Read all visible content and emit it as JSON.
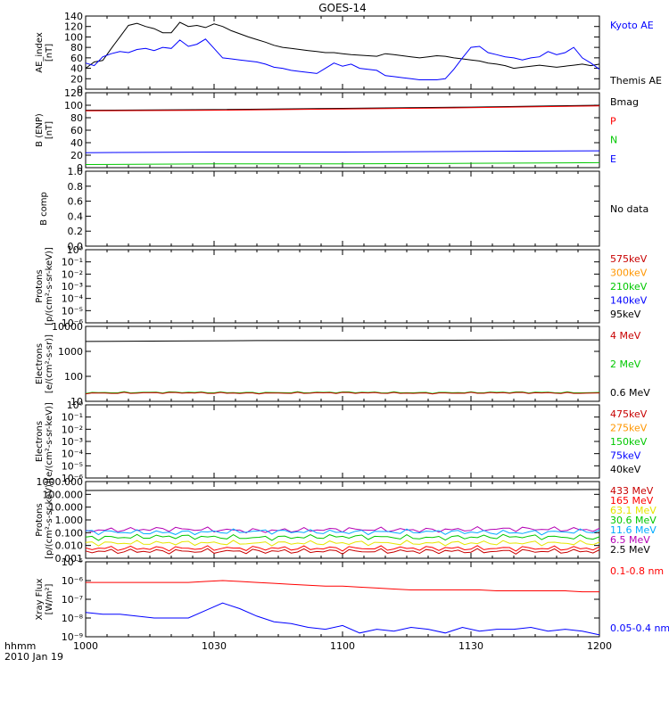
{
  "title": "GOES-14",
  "time_axis": {
    "corner_label": "hhmm",
    "date_label": "2010 Jan 19",
    "ticks": [
      "1000",
      "1030",
      "1100",
      "1130",
      "1200"
    ]
  },
  "colors": {
    "black": "#000000",
    "blue": "#0000ff",
    "red": "#ff0000",
    "green": "#00c800",
    "darkred": "#c80000",
    "orange": "#ff9600",
    "yellow": "#e6e600",
    "cyan": "#00aaff",
    "purple": "#b400b4"
  },
  "chart_data": [
    {
      "id": "ae",
      "type": "line",
      "ylabel": [
        "AE_index",
        "[nT]"
      ],
      "ylim": [
        0,
        140
      ],
      "yticks": [
        "0",
        "20",
        "40",
        "60",
        "80",
        "100",
        "120",
        "140"
      ],
      "legend": [
        {
          "label": "Kyoto AE",
          "color": "#0000ff"
        },
        {
          "label": "Themis AE",
          "color": "#000000"
        }
      ],
      "x_minutes": [
        0,
        2,
        4,
        6,
        8,
        10,
        12,
        14,
        16,
        18,
        20,
        22,
        24,
        26,
        28,
        30,
        32,
        34,
        36,
        38,
        40,
        42,
        44,
        46,
        48,
        50,
        52,
        54,
        56,
        58,
        60,
        62,
        64,
        66,
        68,
        70,
        72,
        74,
        76,
        78,
        80,
        82,
        84,
        86,
        88,
        90,
        92,
        94,
        96,
        98,
        100,
        102,
        104,
        106,
        108,
        110,
        112,
        114,
        116,
        118,
        120
      ],
      "series": [
        {
          "name": "Themis AE",
          "color": "#000000",
          "values": [
            40,
            52,
            55,
            78,
            100,
            122,
            126,
            120,
            116,
            108,
            108,
            128,
            120,
            122,
            118,
            125,
            120,
            112,
            106,
            100,
            95,
            90,
            84,
            80,
            78,
            76,
            74,
            72,
            70,
            70,
            68,
            66,
            65,
            64,
            63,
            68,
            66,
            64,
            62,
            60,
            62,
            64,
            63,
            60,
            58,
            56,
            54,
            50,
            48,
            45,
            40,
            42,
            44,
            46,
            44,
            42,
            44,
            46,
            48,
            45,
            48
          ]
        },
        {
          "name": "Kyoto AE",
          "color": "#0000ff",
          "values": [
            50,
            45,
            62,
            68,
            72,
            70,
            76,
            78,
            74,
            80,
            78,
            94,
            82,
            86,
            96,
            78,
            60,
            58,
            56,
            54,
            52,
            48,
            42,
            40,
            36,
            34,
            32,
            30,
            40,
            50,
            44,
            48,
            40,
            38,
            36,
            26,
            24,
            22,
            20,
            18,
            18,
            18,
            20,
            38,
            60,
            80,
            82,
            70,
            66,
            62,
            60,
            56,
            60,
            62,
            72,
            66,
            70,
            80,
            60,
            50,
            38
          ]
        }
      ]
    },
    {
      "id": "bfield",
      "type": "line",
      "ylabel": [
        "B (ENP)",
        "[nT]"
      ],
      "ylim": [
        0,
        120
      ],
      "yticks": [
        "0",
        "20",
        "40",
        "60",
        "80",
        "100",
        "120"
      ],
      "legend": [
        {
          "label": "Bmag",
          "color": "#000000"
        },
        {
          "label": "P",
          "color": "#ff0000"
        },
        {
          "label": "N",
          "color": "#00c800"
        },
        {
          "label": "E",
          "color": "#0000ff"
        }
      ],
      "x_minutes": [
        0,
        30,
        60,
        90,
        120
      ],
      "series": [
        {
          "name": "Bmag",
          "color": "#000000",
          "values": [
            92,
            93,
            95,
            97,
            100
          ]
        },
        {
          "name": "P",
          "color": "#ff0000",
          "values": [
            91,
            92,
            94,
            96,
            99
          ]
        },
        {
          "name": "E",
          "color": "#0000ff",
          "values": [
            24,
            25,
            25,
            26,
            27
          ]
        },
        {
          "name": "N",
          "color": "#00c800",
          "values": [
            5,
            6,
            6,
            7,
            8
          ]
        }
      ]
    },
    {
      "id": "bcomp",
      "type": "line",
      "ylabel": [
        "B comp"
      ],
      "ylim": [
        0,
        1
      ],
      "yticks": [
        "0.0",
        "0.2",
        "0.4",
        "0.6",
        "0.8",
        "1.0"
      ],
      "legend": [
        {
          "label": "No data",
          "color": "#000000"
        }
      ],
      "series": []
    },
    {
      "id": "protons_low",
      "type": "line",
      "scale": "log",
      "ylabel": [
        "Protons",
        "[p/(cm²-s-sr-keV)]"
      ],
      "yticks": [
        "10⁻⁶",
        "10⁻⁵",
        "10⁻⁴",
        "10⁻³",
        "10⁻²",
        "10⁻¹",
        "10⁰"
      ],
      "legend": [
        {
          "label": "575keV",
          "color": "#c80000"
        },
        {
          "label": "300keV",
          "color": "#ff9600"
        },
        {
          "label": "210keV",
          "color": "#00c800"
        },
        {
          "label": "140keV",
          "color": "#0000ff"
        },
        {
          "label": "95keV",
          "color": "#000000"
        }
      ],
      "series": []
    },
    {
      "id": "electrons_mev",
      "type": "line",
      "scale": "log",
      "ylabel": [
        "Electrons",
        "[e/(cm²-s-sr)]"
      ],
      "ylim": [
        10,
        10000
      ],
      "yticks": [
        "10",
        "100",
        "1000",
        "10000"
      ],
      "legend": [
        {
          "label": "4 MeV",
          "color": "#c80000"
        },
        {
          "label": "2 MeV",
          "color": "#00c800"
        },
        {
          "label": "0.6 MeV",
          "color": "#000000"
        }
      ],
      "x_minutes": [
        0,
        20,
        40,
        60,
        80,
        100,
        120
      ],
      "series": [
        {
          "name": "0.6 MeV",
          "color": "#000000",
          "values": [
            2500,
            2600,
            2700,
            2750,
            2800,
            2850,
            2900
          ]
        },
        {
          "name": "2 MeV",
          "color": "#00c800",
          "values": [
            22,
            23,
            22,
            23,
            22,
            23,
            22
          ]
        },
        {
          "name": "4 MeV",
          "color": "#c80000",
          "values": [
            21,
            22,
            21,
            22,
            21,
            22,
            21
          ]
        }
      ]
    },
    {
      "id": "electrons_kev",
      "type": "line",
      "scale": "log",
      "ylabel": [
        "Electrons",
        "[e/(cm²-s-sr-keV)]"
      ],
      "yticks": [
        "10⁻⁶",
        "10⁻⁵",
        "10⁻⁴",
        "10⁻³",
        "10⁻²",
        "10⁻¹",
        "10⁰"
      ],
      "legend": [
        {
          "label": "475keV",
          "color": "#c80000"
        },
        {
          "label": "275keV",
          "color": "#ff9600"
        },
        {
          "label": "150keV",
          "color": "#00c800"
        },
        {
          "label": "75keV",
          "color": "#0000ff"
        },
        {
          "label": "40keV",
          "color": "#000000"
        }
      ],
      "series": []
    },
    {
      "id": "protons_mev",
      "type": "line",
      "scale": "log",
      "ylabel": [
        "Protons",
        "[p/(cm²-s-sr-keV)]"
      ],
      "ylim": [
        0.001,
        1000
      ],
      "yticks": [
        "0.001",
        "0.010",
        "0.100",
        "1.000",
        "10.000",
        "100.000",
        "1000.000"
      ],
      "legend": [
        {
          "label": "433 MeV",
          "color": "#c80000"
        },
        {
          "label": "165 MeV",
          "color": "#ff0000"
        },
        {
          "label": "63.1 MeV",
          "color": "#e6e600"
        },
        {
          "label": "30.6 MeV",
          "color": "#00c800"
        },
        {
          "label": "11.6 MeV",
          "color": "#00aaff"
        },
        {
          "label": "6.5 MeV",
          "color": "#b400b4"
        },
        {
          "label": "2.5 MeV",
          "color": "#000000"
        }
      ],
      "x_minutes": [
        0,
        20,
        40,
        60,
        80,
        100,
        120
      ],
      "series": [
        {
          "name": "2.5 MeV",
          "color": "#000000",
          "values": [
            200,
            210,
            220,
            225,
            230,
            235,
            240
          ]
        },
        {
          "name": "6.5 MeV",
          "color": "#b400b4",
          "values": [
            0.15,
            0.2,
            0.14,
            0.18,
            0.16,
            0.2,
            0.17
          ]
        },
        {
          "name": "11.6 MeV",
          "color": "#00aaff",
          "values": [
            0.12,
            0.1,
            0.13,
            0.11,
            0.12,
            0.1,
            0.13
          ]
        },
        {
          "name": "30.6 MeV",
          "color": "#00c800",
          "values": [
            0.04,
            0.05,
            0.04,
            0.05,
            0.04,
            0.05,
            0.04
          ]
        },
        {
          "name": "63.1 MeV",
          "color": "#e6e600",
          "values": [
            0.015,
            0.016,
            0.015,
            0.016,
            0.015,
            0.016,
            0.015
          ]
        },
        {
          "name": "165 MeV",
          "color": "#ff0000",
          "values": [
            0.006,
            0.006,
            0.006,
            0.006,
            0.006,
            0.006,
            0.006
          ]
        },
        {
          "name": "433 MeV",
          "color": "#c80000",
          "values": [
            0.0035,
            0.0035,
            0.0035,
            0.0035,
            0.0035,
            0.0035,
            0.0035
          ]
        }
      ]
    },
    {
      "id": "xray",
      "type": "line",
      "scale": "log",
      "ylabel": [
        "Xray Flux",
        "[W/m²]"
      ],
      "yticks": [
        "10⁻⁹",
        "10⁻⁸",
        "10⁻⁷",
        "10⁻⁶",
        "10⁻⁵"
      ],
      "ylim_exp": [
        -9,
        -5
      ],
      "legend": [
        {
          "label": "0.1-0.8 nm",
          "color": "#ff0000"
        },
        {
          "label": "0.05-0.4 nm",
          "color": "#0000ff"
        }
      ],
      "x_minutes": [
        0,
        4,
        8,
        12,
        16,
        20,
        24,
        28,
        32,
        36,
        40,
        44,
        48,
        52,
        56,
        60,
        64,
        68,
        72,
        76,
        80,
        84,
        88,
        92,
        96,
        100,
        104,
        108,
        112,
        116,
        120
      ],
      "series": [
        {
          "name": "0.1-0.8 nm",
          "color": "#ff0000",
          "exp_values": [
            -6.1,
            -6.1,
            -6.1,
            -6.1,
            -6.1,
            -6.1,
            -6.1,
            -6.05,
            -6.0,
            -6.05,
            -6.1,
            -6.15,
            -6.2,
            -6.25,
            -6.3,
            -6.3,
            -6.35,
            -6.4,
            -6.45,
            -6.5,
            -6.5,
            -6.5,
            -6.5,
            -6.5,
            -6.55,
            -6.55,
            -6.55,
            -6.55,
            -6.55,
            -6.6,
            -6.6
          ]
        },
        {
          "name": "0.05-0.4 nm",
          "color": "#0000ff",
          "exp_values": [
            -7.7,
            -7.8,
            -7.8,
            -7.9,
            -8.0,
            -8.0,
            -8.0,
            -7.6,
            -7.2,
            -7.5,
            -7.9,
            -8.2,
            -8.3,
            -8.5,
            -8.6,
            -8.4,
            -8.8,
            -8.6,
            -8.7,
            -8.5,
            -8.6,
            -8.8,
            -8.5,
            -8.7,
            -8.6,
            -8.6,
            -8.5,
            -8.7,
            -8.6,
            -8.7,
            -8.9
          ]
        }
      ]
    }
  ]
}
